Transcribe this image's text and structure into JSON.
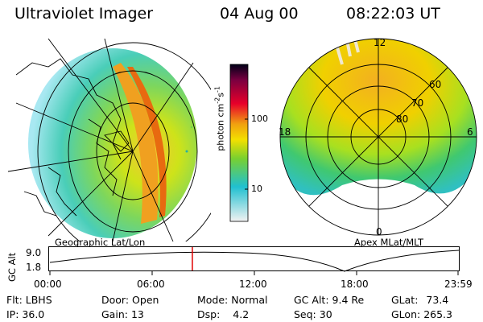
{
  "header": {
    "title": "Ultraviolet Imager",
    "date": "04 Aug 00",
    "time": "08:22:03 UT"
  },
  "left_panel": {
    "label": "Geographic Lat/Lon"
  },
  "colorbar": {
    "label": "photon cm",
    "label_exp1": "-2",
    "label_mid": "s",
    "label_exp2": "-1",
    "ticks": [
      "100",
      "10"
    ]
  },
  "right_panel": {
    "label": "Apex MLat/MLT",
    "lat_labels": [
      "60",
      "70",
      "80"
    ],
    "mlt_labels": [
      "12",
      "18",
      "6",
      "0"
    ]
  },
  "altitude_plot": {
    "ylabel": "GC Alt",
    "yticks": [
      "9.0",
      "1.8"
    ],
    "xticks": [
      "00:00",
      "06:00",
      "12:00",
      "18:00",
      "23:59"
    ],
    "marker_time_fraction": 0.349
  },
  "info": {
    "filter": {
      "label": "Flt:",
      "value": "LBHS"
    },
    "ip": {
      "label": "IP:",
      "value": "36.0"
    },
    "door": {
      "label": "Door:",
      "value": "Open"
    },
    "gain": {
      "label": "Gain:",
      "value": "13"
    },
    "mode": {
      "label": "Mode:",
      "value": "Normal"
    },
    "dsp": {
      "label": "Dsp:",
      "value": "4.2"
    },
    "gc_alt": {
      "label": "GC Alt:",
      "value": "9.4 Re"
    },
    "seq": {
      "label": "Seq:",
      "value": "30"
    },
    "glat": {
      "label": "GLat:",
      "value": "73.4"
    },
    "glon": {
      "label": "GLon:",
      "value": "265.3"
    }
  }
}
